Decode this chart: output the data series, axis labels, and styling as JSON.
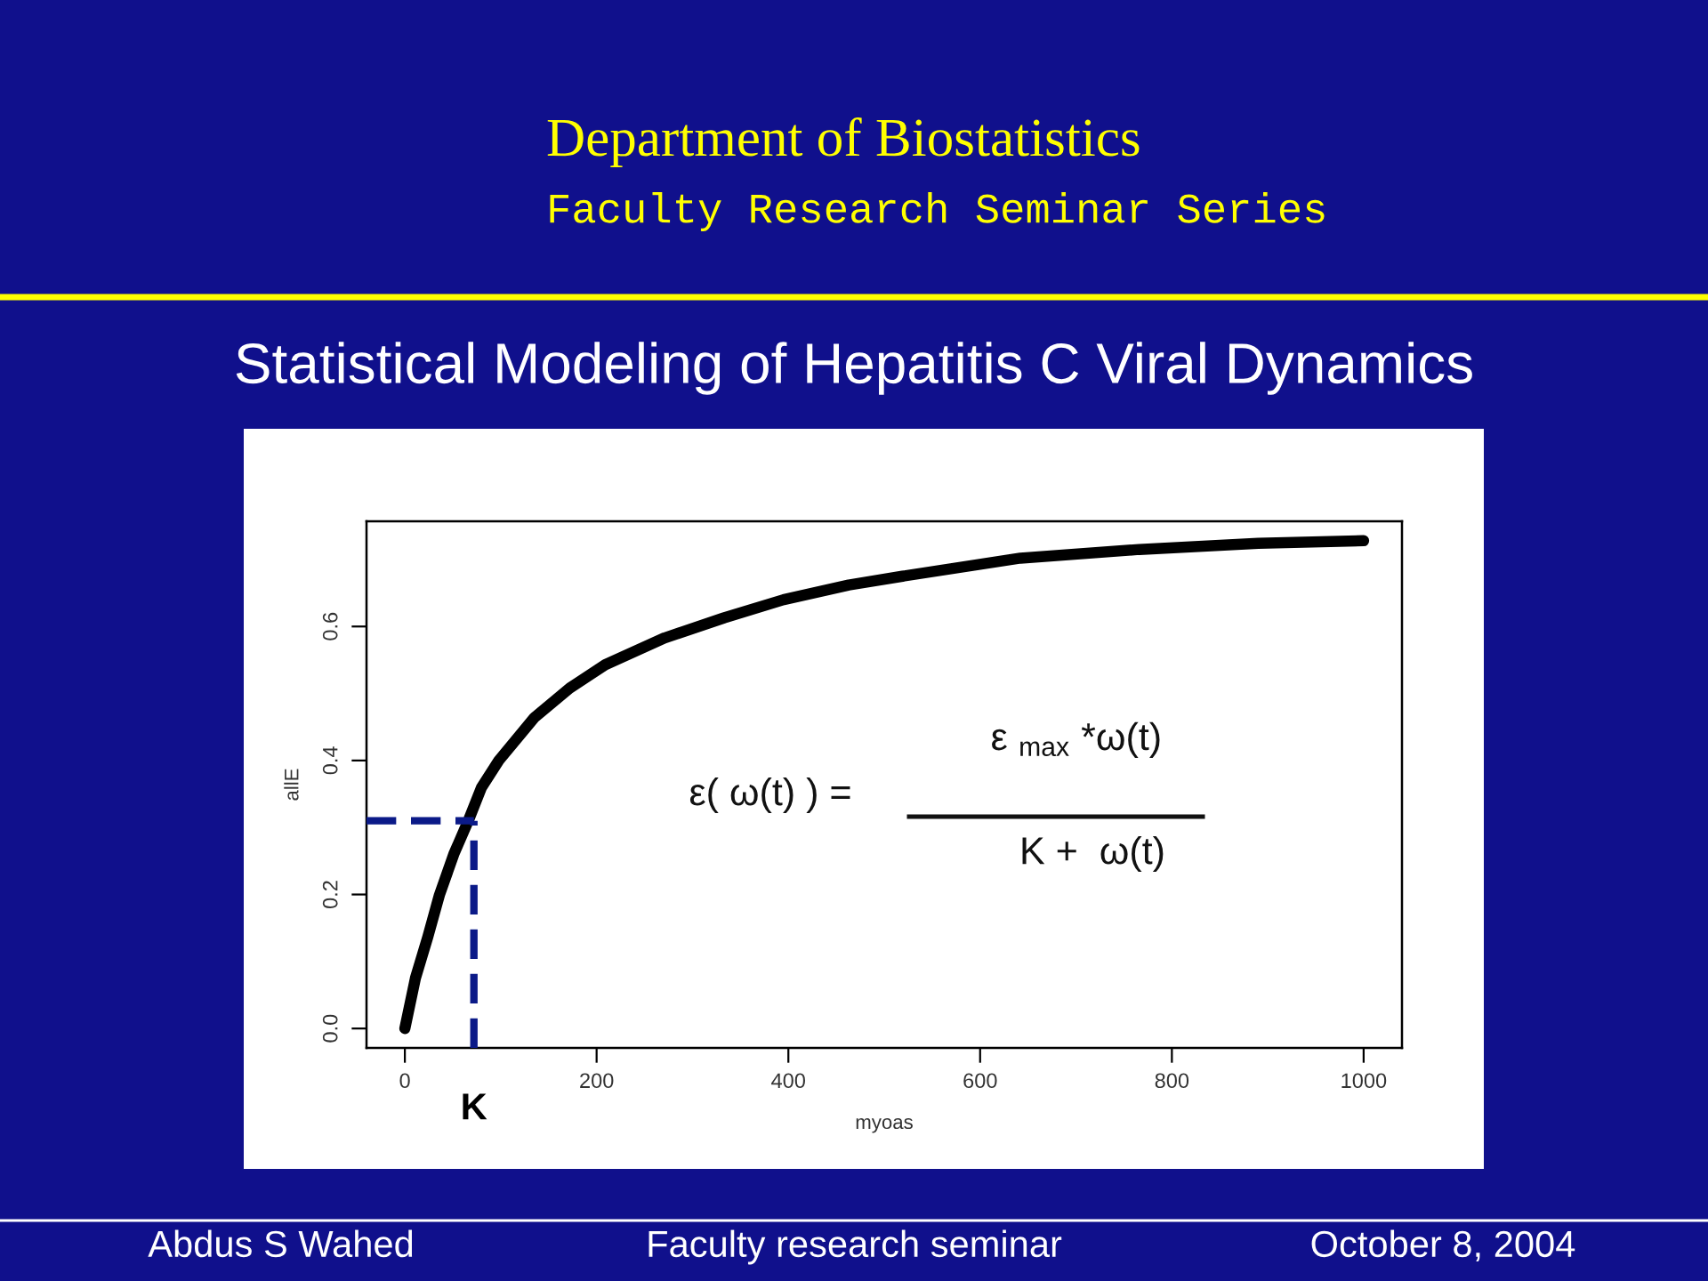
{
  "chart_data": {
    "type": "line",
    "title": "Statistical Modeling of Hepatitis C Viral Dynamics",
    "xlabel": "myoas",
    "ylabel": "allE",
    "x": [
      0,
      11,
      24,
      36,
      51,
      67,
      80,
      98,
      135,
      172,
      209,
      271,
      333,
      395,
      463,
      519,
      642,
      766,
      890,
      1000
    ],
    "values": [
      0.0,
      0.075,
      0.137,
      0.199,
      0.26,
      0.313,
      0.36,
      0.4,
      0.464,
      0.508,
      0.543,
      0.583,
      0.613,
      0.64,
      0.662,
      0.675,
      0.702,
      0.715,
      0.724,
      0.728
    ],
    "color": "#000000",
    "xlim": [
      -40,
      1040
    ],
    "xticks": [
      0,
      200,
      400,
      600,
      800,
      1000
    ],
    "ylim": [
      -0.029,
      0.757
    ],
    "yticks": [
      {
        "value": 0,
        "label": "0.0"
      },
      0.2,
      0.4,
      0.6
    ],
    "ref_lines": [
      {
        "axis": "x",
        "value": 72,
        "label": "K",
        "color": "#0b1a88",
        "line_style": "dashed"
      },
      {
        "axis": "y",
        "value": 0.31,
        "color": "#0b1a88",
        "line_style": "dashed"
      }
    ],
    "annotations": [
      "Department of Biostatistics",
      "Faculty Research Seminar Series",
      "ε( ω(t) ) =",
      "ε $_{max}$ *ω(t)",
      "K +  ω(t)",
      "Abdus S Wahed",
      "Faculty research seminar",
      "October 8, 2004"
    ]
  }
}
